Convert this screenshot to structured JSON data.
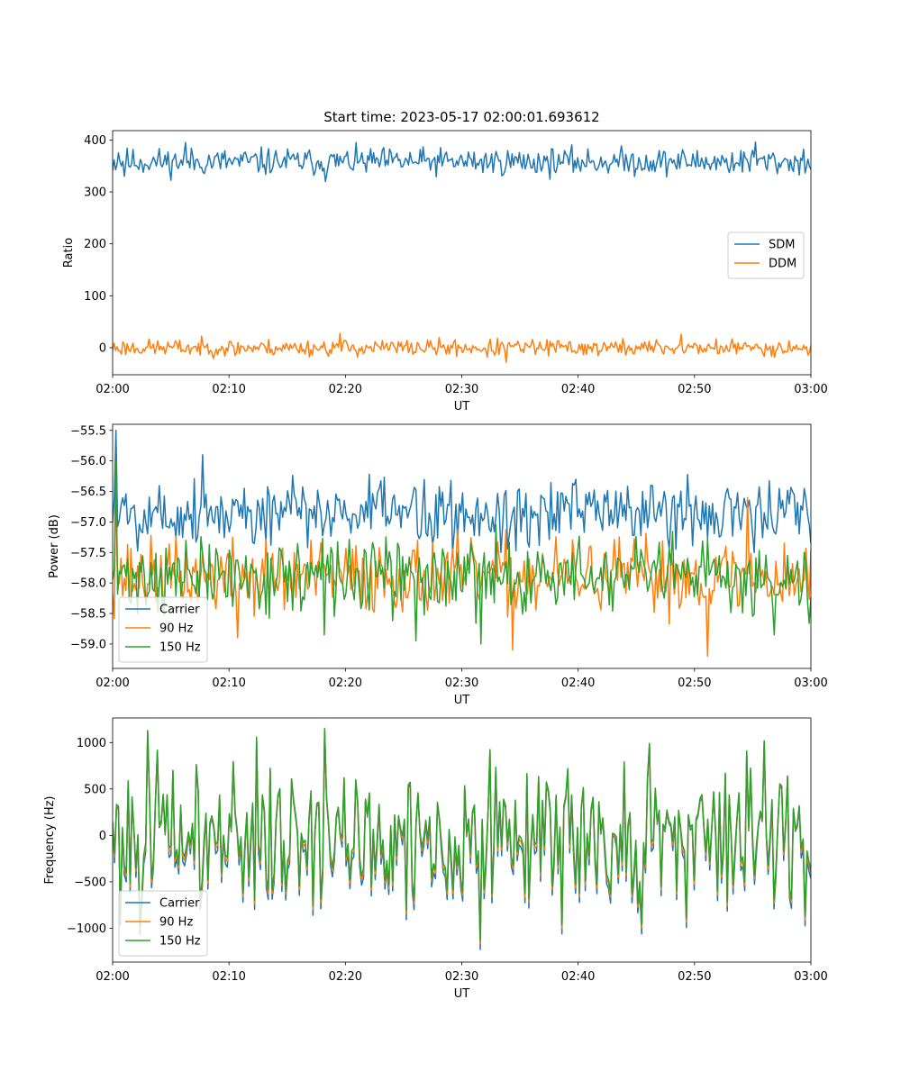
{
  "title": "Start time: 2023-05-17 02:00:01.693612",
  "chart_data": [
    {
      "type": "line",
      "xlabel": "UT",
      "ylabel": "Ratio",
      "xlim": [
        "02:00",
        "03:00"
      ],
      "ylim": [
        -52,
        418
      ],
      "xticks": [
        "02:00",
        "02:10",
        "02:20",
        "02:30",
        "02:40",
        "02:50",
        "03:00"
      ],
      "yticks": [
        0,
        100,
        200,
        300,
        400
      ],
      "legend_position": "center-right",
      "grid": false,
      "series": [
        {
          "name": "SDM",
          "color": "#1f77b4",
          "mean": 358,
          "noise": 13,
          "seed": 11,
          "anchors": [
            [
              0.5,
              375
            ],
            [
              6.3,
              395
            ],
            [
              18.3,
              320
            ],
            [
              55.2,
              396
            ],
            [
              1.0,
              330
            ]
          ]
        },
        {
          "name": "DDM",
          "color": "#ff7f0e",
          "mean": 0,
          "noise": 8,
          "seed": 23,
          "anchors": [
            [
              19.6,
              28
            ],
            [
              33.8,
              -28
            ],
            [
              48.8,
              26
            ],
            [
              10.5,
              -15
            ],
            [
              32.2,
              -18
            ]
          ]
        }
      ]
    },
    {
      "type": "line",
      "xlabel": "UT",
      "ylabel": "Power (dB)",
      "xlim": [
        "02:00",
        "03:00"
      ],
      "ylim": [
        -59.4,
        -55.4
      ],
      "xticks": [
        "02:00",
        "02:10",
        "02:20",
        "02:30",
        "02:40",
        "02:50",
        "03:00"
      ],
      "yticks": [
        -59.0,
        -58.5,
        -58.0,
        -57.5,
        -57.0,
        -56.5,
        -56.0,
        -55.5
      ],
      "legend_position": "bottom-left",
      "grid": false,
      "series": [
        {
          "name": "Carrier",
          "color": "#1f77b4",
          "mean": -56.85,
          "noise": 0.28,
          "seed": 5,
          "anchors": [
            [
              0.3,
              -55.5
            ],
            [
              7.7,
              -55.9
            ],
            [
              29.2,
              -57.5
            ],
            [
              33.4,
              -57.5
            ],
            [
              55.2,
              -57.5
            ]
          ]
        },
        {
          "name": "90 Hz",
          "color": "#ff7f0e",
          "mean": -57.9,
          "noise": 0.3,
          "seed": 37,
          "anchors": [
            [
              0.3,
              -56.2
            ],
            [
              51.1,
              -59.2
            ],
            [
              34.4,
              -59.1
            ],
            [
              10.8,
              -58.9
            ],
            [
              54.5,
              -56.6
            ]
          ]
        },
        {
          "name": "150 Hz",
          "color": "#2ca02c",
          "mean": -57.9,
          "noise": 0.3,
          "seed": 71,
          "anchors": [
            [
              0.3,
              -56.0
            ],
            [
              31.6,
              -59.0
            ],
            [
              26.1,
              -58.95
            ],
            [
              56.8,
              -58.85
            ],
            [
              18.2,
              -58.85
            ]
          ]
        }
      ]
    },
    {
      "type": "line",
      "xlabel": "UT",
      "ylabel": "Frequency (Hz)",
      "xlim": [
        "02:00",
        "03:00"
      ],
      "ylim": [
        -1365,
        1265
      ],
      "xticks": [
        "02:00",
        "02:10",
        "02:20",
        "02:30",
        "02:40",
        "02:50",
        "03:00"
      ],
      "yticks": [
        -1000,
        -500,
        0,
        500,
        1000
      ],
      "legend_position": "bottom-left",
      "grid": false,
      "series": [
        {
          "name": "Carrier",
          "color": "#1f77b4",
          "offset": -100,
          "mean": 0,
          "noise": 380,
          "seed": 101,
          "anchors": [
            [
              31.6,
              -1130
            ],
            [
              3.0,
              1130
            ],
            [
              18.3,
              1150
            ],
            [
              12.3,
              1060
            ],
            [
              56.0,
              1020
            ],
            [
              25.9,
              -700
            ],
            [
              45.5,
              -960
            ]
          ]
        },
        {
          "name": "90 Hz",
          "color": "#ff7f0e",
          "offset": -40,
          "mean": 0,
          "noise": 380,
          "seed": 101,
          "anchors": [
            [
              31.6,
              -1130
            ],
            [
              3.0,
              1130
            ],
            [
              18.3,
              1150
            ],
            [
              12.3,
              1060
            ],
            [
              56.0,
              1020
            ],
            [
              25.9,
              -700
            ],
            [
              45.5,
              -960
            ]
          ]
        },
        {
          "name": "150 Hz",
          "color": "#2ca02c",
          "offset": 0,
          "mean": 0,
          "noise": 380,
          "seed": 101,
          "anchors": [
            [
              31.6,
              -1130
            ],
            [
              3.0,
              1130
            ],
            [
              18.3,
              1150
            ],
            [
              12.3,
              1060
            ],
            [
              56.0,
              1020
            ],
            [
              25.9,
              -700
            ],
            [
              45.5,
              -960
            ]
          ]
        }
      ]
    }
  ]
}
